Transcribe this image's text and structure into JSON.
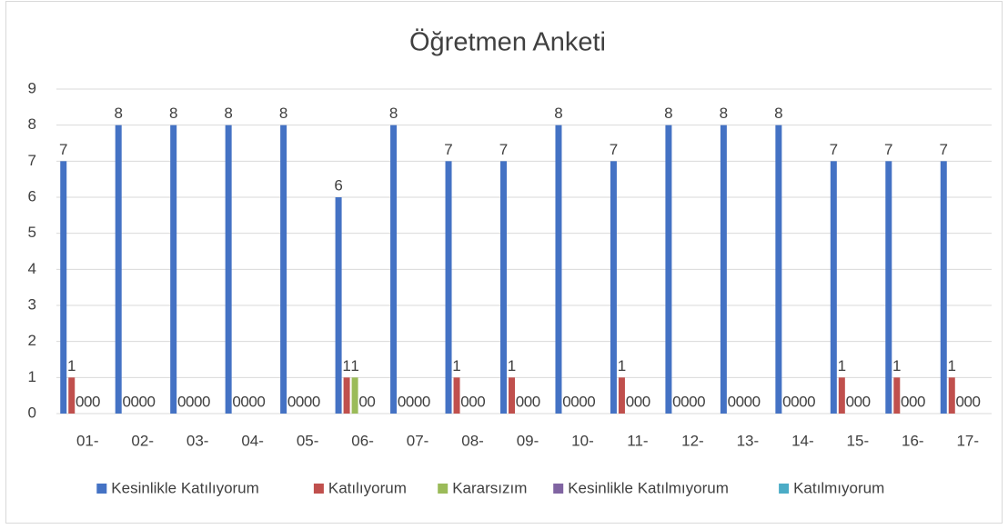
{
  "chart_data": {
    "type": "bar",
    "title": "Öğretmen Anketi",
    "categories": [
      "01-",
      "02-",
      "03-",
      "04-",
      "05-",
      "06-",
      "07-",
      "08-",
      "09-",
      "10-",
      "11-",
      "12-",
      "13-",
      "14-",
      "15-",
      "16-",
      "17-"
    ],
    "series": [
      {
        "name": "Kesinlikle Katılıyorum",
        "color": "#4472c4",
        "values": [
          7,
          8,
          8,
          8,
          8,
          6,
          8,
          7,
          7,
          8,
          7,
          8,
          8,
          8,
          7,
          7,
          7
        ]
      },
      {
        "name": "Katılıyorum",
        "color": "#c0504d",
        "values": [
          1,
          0,
          0,
          0,
          0,
          1,
          0,
          1,
          1,
          0,
          1,
          0,
          0,
          0,
          1,
          1,
          1
        ]
      },
      {
        "name": "Kararsızım",
        "color": "#9bbb59",
        "values": [
          0,
          0,
          0,
          0,
          0,
          1,
          0,
          0,
          0,
          0,
          0,
          0,
          0,
          0,
          0,
          0,
          0
        ]
      },
      {
        "name": "Kesinlikle Katılmıyorum",
        "color": "#8064a2",
        "values": [
          0,
          0,
          0,
          0,
          0,
          0,
          0,
          0,
          0,
          0,
          0,
          0,
          0,
          0,
          0,
          0,
          0
        ]
      },
      {
        "name": "Katılmıyorum",
        "color": "#4bacc6",
        "values": [
          0,
          0,
          0,
          0,
          0,
          0,
          0,
          0,
          0,
          0,
          0,
          0,
          0,
          0,
          0,
          0,
          0
        ]
      }
    ],
    "ylim": [
      0,
      9
    ],
    "yticks": [
      0,
      1,
      2,
      3,
      4,
      5,
      6,
      7,
      8,
      9
    ],
    "grid": true,
    "legend": "bottom"
  }
}
